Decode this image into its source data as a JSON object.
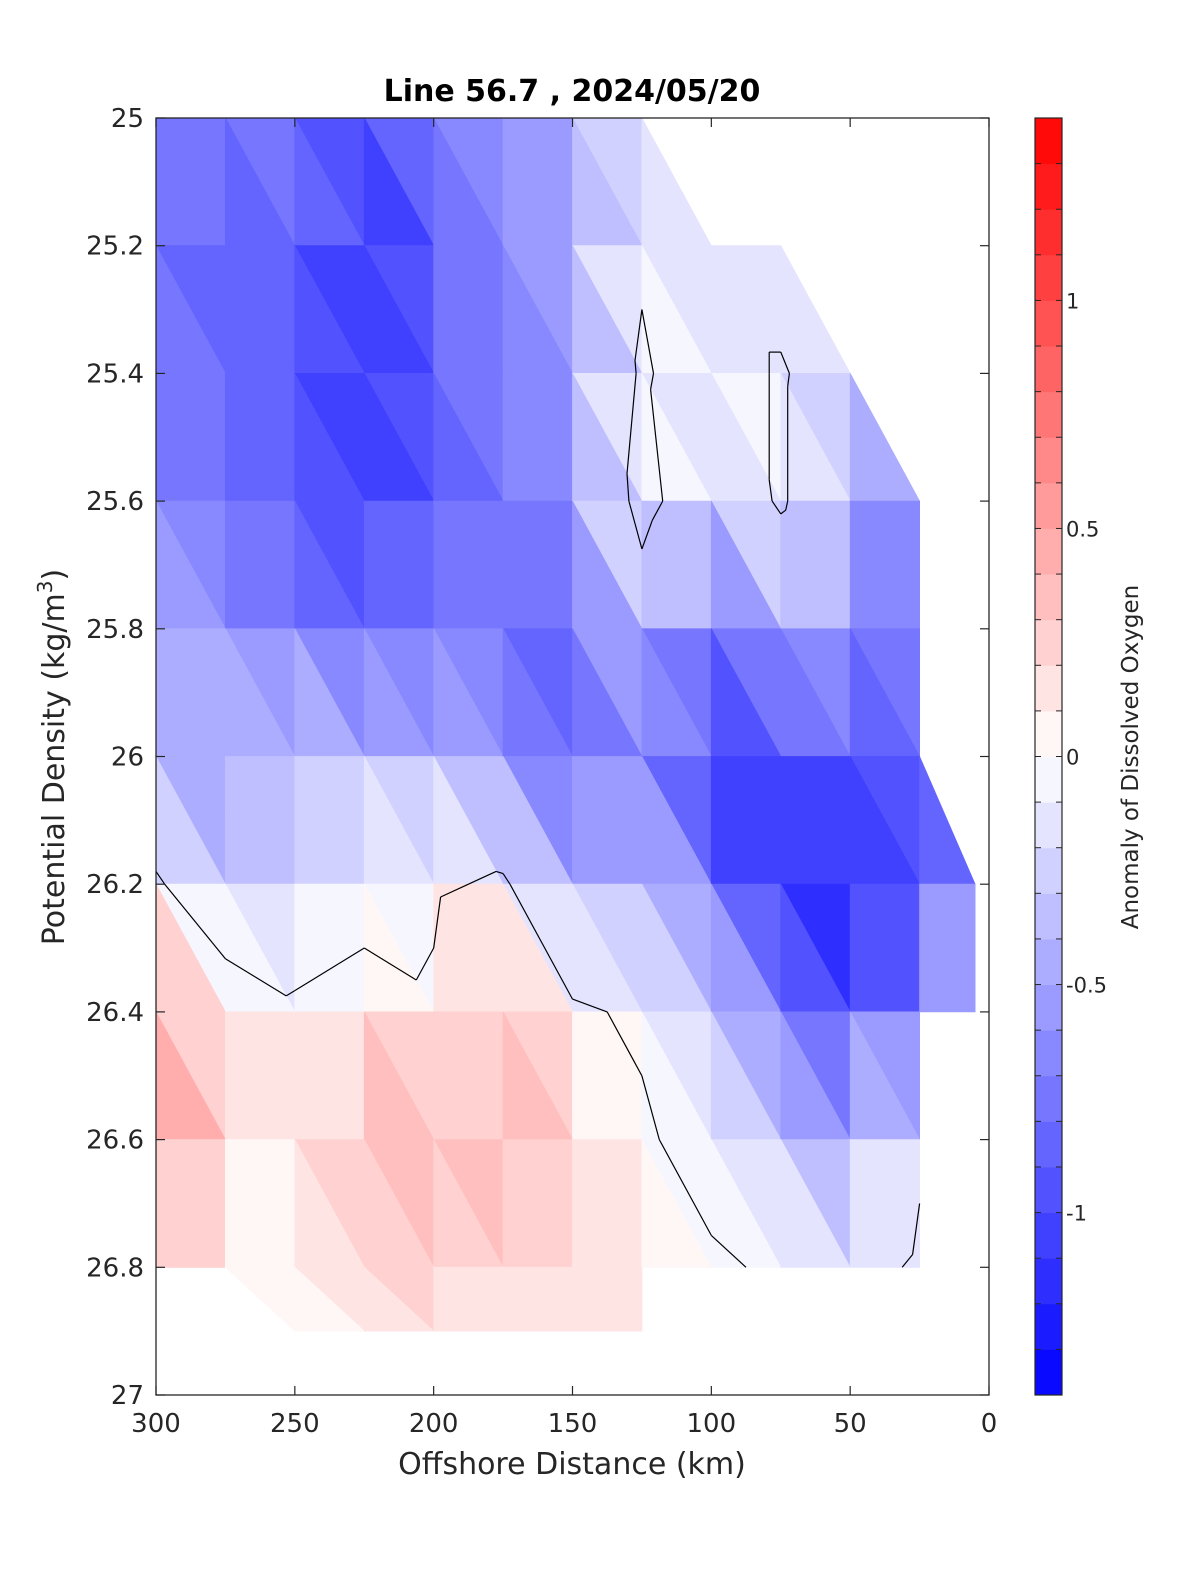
{
  "chart_data": {
    "type": "heatmap",
    "title": "Line 56.7 , 2024/05/20",
    "xlabel": "Offshore Distance (km)",
    "ylabel_main": "Potential Density (kg/m",
    "ylabel_sup": "3",
    "ylabel_close": ")",
    "colorbar_label": "Anomaly of Dissolved Oxygen",
    "xlim": [
      300,
      0
    ],
    "ylim": [
      25,
      27
    ],
    "x_ticks": [
      "300",
      "250",
      "200",
      "150",
      "100",
      "50",
      "0"
    ],
    "y_ticks": [
      "25",
      "25.2",
      "25.4",
      "25.6",
      "25.8",
      "26",
      "26.2",
      "26.4",
      "26.6",
      "26.8",
      "27"
    ],
    "colorbar_range": [
      -1.4,
      1.4
    ],
    "colorbar_step": 0.1,
    "colorbar_ticks": [
      "1",
      "0.5",
      "0",
      "-0.5",
      "-1"
    ],
    "colormap": {
      "negative": "#0000ff",
      "zero": "#ffffff",
      "positive": "#ff0000"
    },
    "x": [
      300,
      275,
      250,
      225,
      200,
      175,
      150,
      125,
      100,
      75,
      50,
      25,
      5
    ],
    "y": [
      25.0,
      25.2,
      25.4,
      25.6,
      25.8,
      26.0,
      26.2,
      26.4,
      26.6,
      26.8,
      26.9
    ],
    "values": [
      [
        -0.65,
        -0.85,
        -0.75,
        -1.05,
        -0.75,
        -0.65,
        -0.45,
        -0.15,
        null,
        null,
        null,
        null,
        null
      ],
      [
        -0.75,
        -0.85,
        -0.75,
        -1.15,
        -0.85,
        -0.65,
        -0.45,
        -0.05,
        -0.25,
        -0.25,
        null,
        null,
        null
      ],
      [
        -0.75,
        -0.85,
        -0.85,
        -1.15,
        -0.85,
        -0.65,
        -0.55,
        0.05,
        -0.25,
        0.05,
        -0.35,
        null,
        null
      ],
      [
        -0.65,
        -0.75,
        -0.85,
        -1.05,
        -0.85,
        -0.75,
        -0.65,
        0.15,
        -0.35,
        0.05,
        -0.45,
        -0.65,
        null
      ],
      [
        -0.35,
        -0.65,
        -0.75,
        -0.85,
        -0.75,
        -0.75,
        -0.85,
        -0.25,
        -0.85,
        -0.45,
        -0.65,
        -0.75,
        null
      ],
      [
        -0.45,
        -0.45,
        -0.35,
        -0.35,
        -0.45,
        -0.55,
        -0.85,
        -0.55,
        -1.15,
        -0.85,
        -0.95,
        -0.85,
        null
      ],
      [
        0.05,
        -0.35,
        -0.25,
        -0.15,
        -0.05,
        0.05,
        -0.45,
        -0.35,
        -0.75,
        -1.15,
        -1.25,
        -0.95,
        -0.75
      ],
      [
        0.45,
        0.25,
        0.05,
        0.15,
        0.05,
        0.45,
        0.05,
        -0.05,
        -0.25,
        -0.75,
        -0.95,
        -0.65,
        -0.05
      ],
      [
        0.75,
        0.05,
        0.05,
        0.35,
        0.45,
        0.35,
        0.15,
        0.05,
        -0.15,
        -0.35,
        -0.45,
        -0.05,
        null
      ],
      [
        0.05,
        0.05,
        0.05,
        0.25,
        0.25,
        0.15,
        0.25,
        0.15,
        0.05,
        -0.05,
        -0.15,
        0.05,
        null
      ],
      [
        null,
        null,
        0.05,
        0.15,
        0.15,
        0.15,
        0.15,
        0.15,
        null,
        null,
        null,
        null,
        null
      ]
    ]
  }
}
